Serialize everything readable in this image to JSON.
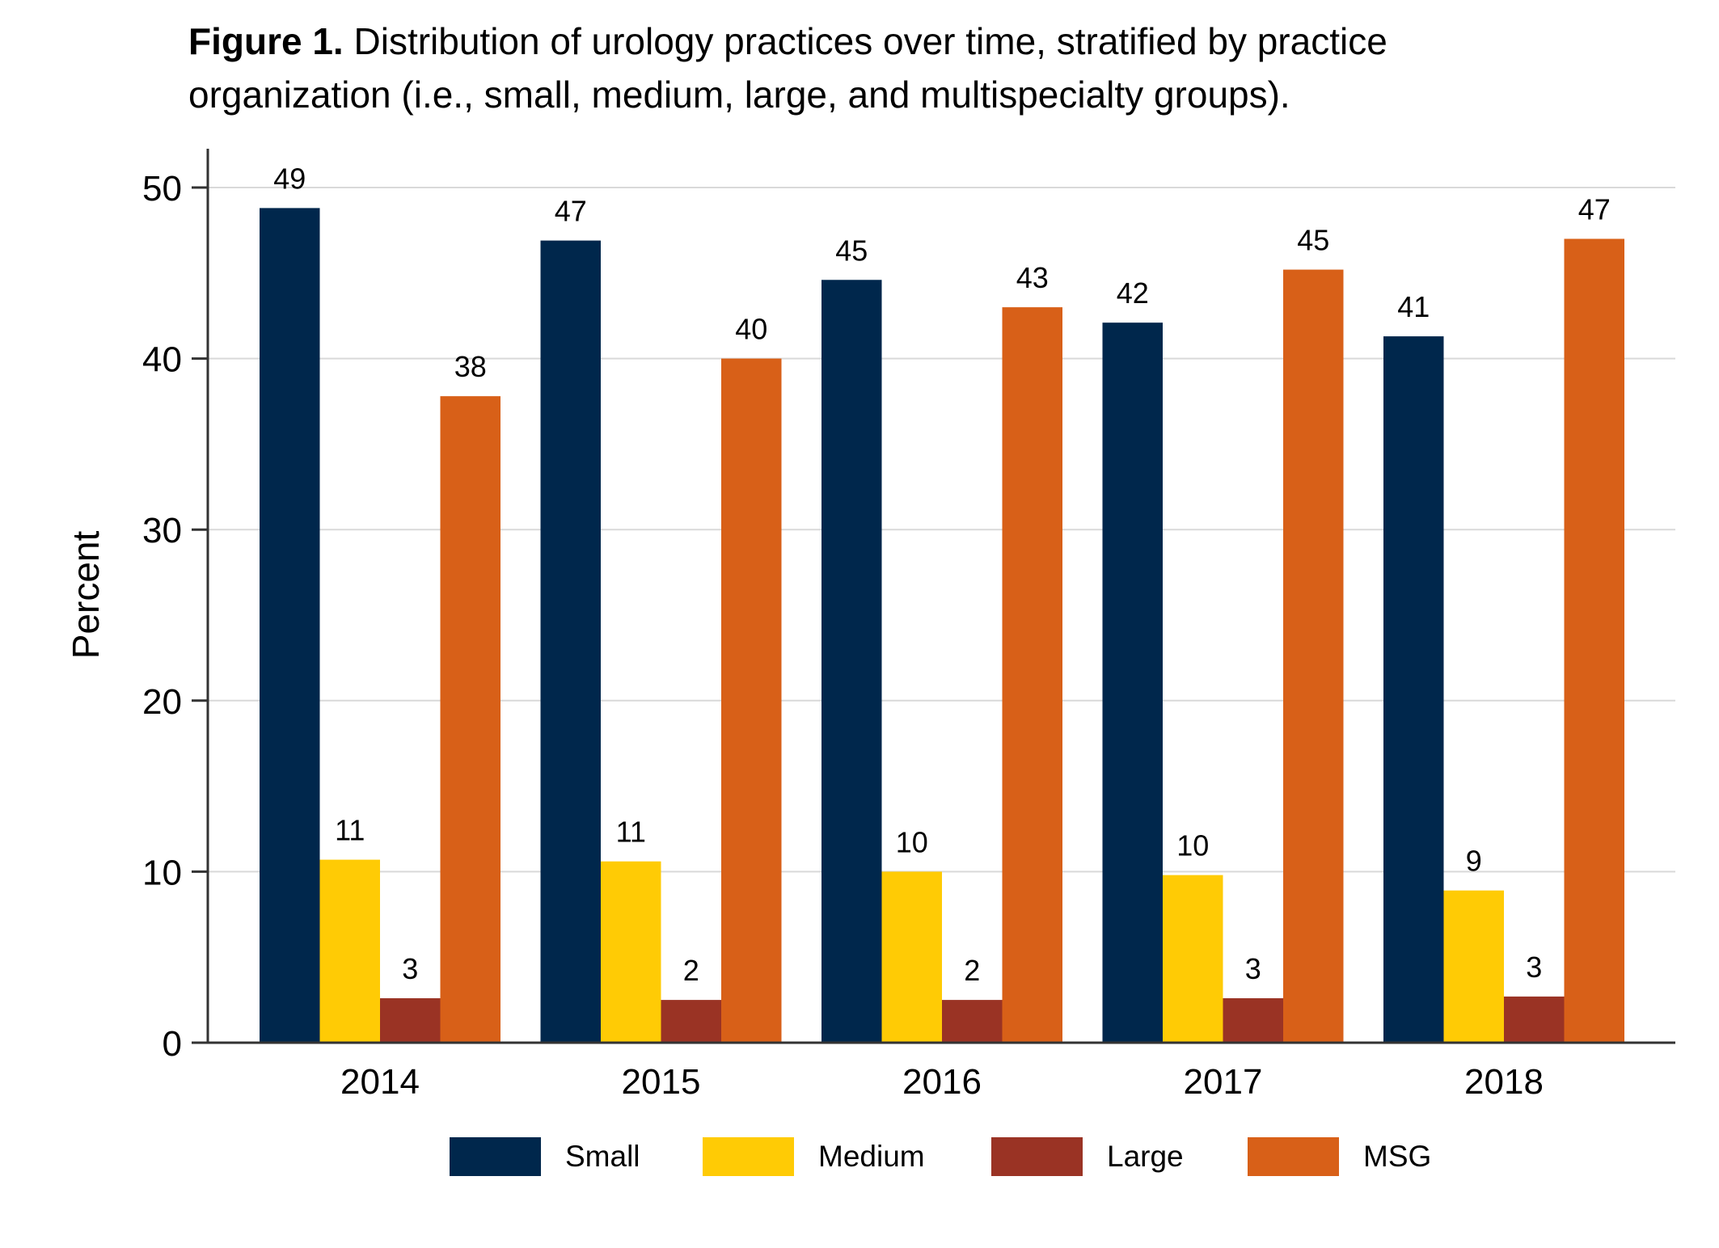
{
  "caption": {
    "label": "Figure 1.",
    "line1": " Distribution of urology practices over time, stratified by practice",
    "line2": "organization (i.e., small, medium, large, and multispecialty groups)."
  },
  "chart_data": {
    "type": "bar",
    "title": "Distribution of urology practices over time, stratified by practice organization (i.e., small, medium, large, and multispecialty groups).",
    "xlabel": "",
    "ylabel": "Percent",
    "ylim": [
      0,
      52
    ],
    "yticks": [
      0,
      10,
      20,
      30,
      40,
      50
    ],
    "grid": true,
    "legend_position": "bottom",
    "categories": [
      "2014",
      "2015",
      "2016",
      "2017",
      "2018"
    ],
    "series": [
      {
        "name": "Small",
        "color": "#00274C",
        "values": [
          48.8,
          46.9,
          44.6,
          42.1,
          41.3
        ],
        "labels": [
          "49",
          "47",
          "45",
          "42",
          "41"
        ]
      },
      {
        "name": "Medium",
        "color": "#FFCB05",
        "values": [
          10.7,
          10.6,
          10.0,
          9.8,
          8.9
        ],
        "labels": [
          "11",
          "11",
          "10",
          "10",
          "9"
        ]
      },
      {
        "name": "Large",
        "color": "#9A3324",
        "values": [
          2.6,
          2.5,
          2.5,
          2.6,
          2.7
        ],
        "labels": [
          "3",
          "2",
          "2",
          "3",
          "3"
        ]
      },
      {
        "name": "MSG",
        "color": "#D86018",
        "values": [
          37.8,
          40.0,
          43.0,
          45.2,
          47.0
        ],
        "labels": [
          "38",
          "40",
          "43",
          "45",
          "47"
        ]
      }
    ]
  }
}
